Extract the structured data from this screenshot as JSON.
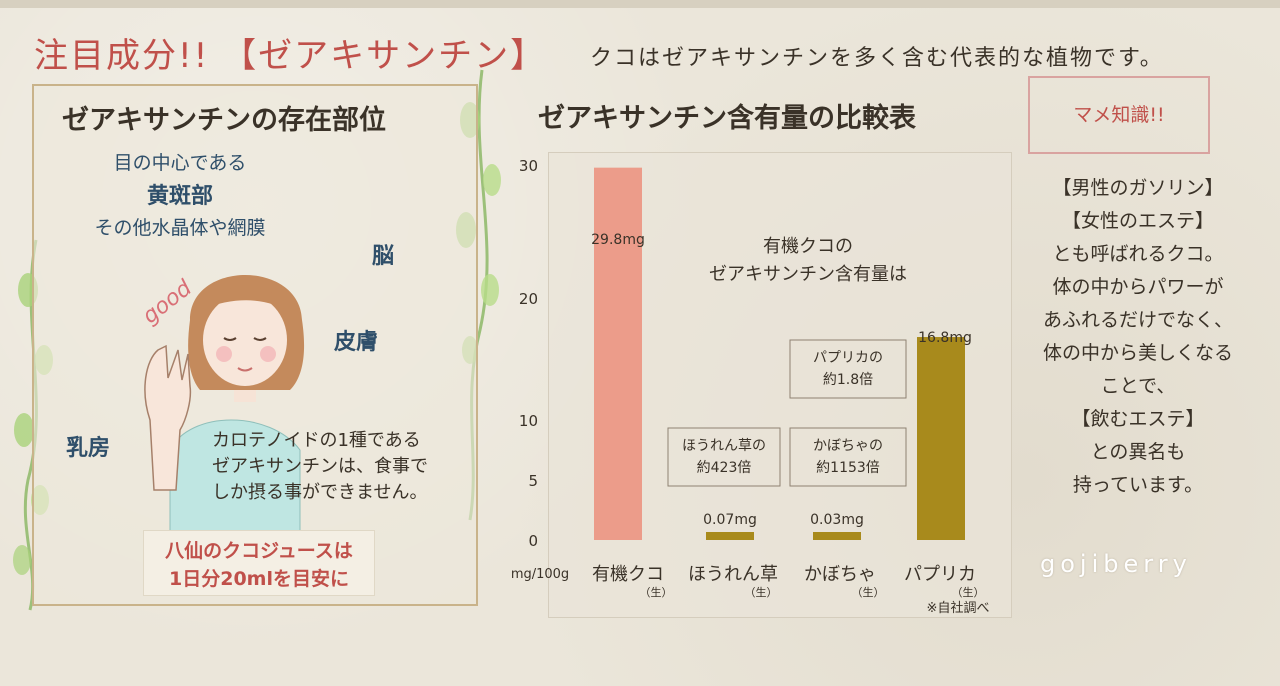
{
  "header": {
    "headline": "注目成分!! 【ゼアキサンチン】",
    "subhead": "クコはゼアキサンチンを多く含む代表的な植物です。"
  },
  "left": {
    "title": "ゼアキサンチンの存在部位",
    "part_line1": "目の中心である",
    "part_line2": "黄斑部",
    "part_line3": "その他水晶体や網膜",
    "label_brain": "脳",
    "label_skin": "皮膚",
    "label_breast": "乳房",
    "good_text": "good",
    "note_lines": [
      "カロテノイドの1種である",
      "ゼアキサンチンは、食事で",
      "しか摂る事ができません。"
    ],
    "callout_lines": [
      "八仙のクコジュースは",
      "1日分20mlを目安に"
    ]
  },
  "chart_data": {
    "type": "bar",
    "title": "ゼアキサンチン含有量の比較表",
    "unit_label": "mg/100g",
    "categories": [
      "有機クコ",
      "ほうれん草",
      "かぼちゃ",
      "パプリカ"
    ],
    "category_suffix": "（生）",
    "values": [
      29.8,
      0.07,
      0.03,
      16.8
    ],
    "value_labels": [
      "29.8mg",
      "0.07mg",
      "0.03mg",
      "16.8mg"
    ],
    "bar_colors": [
      "#ec9c8a",
      "#a88a1c",
      "#a88a1c",
      "#a88a1c"
    ],
    "ylim": [
      0,
      30
    ],
    "yticks": [
      0,
      5,
      10,
      20,
      30
    ],
    "annotation_main": [
      "有機クコの",
      "ゼアキサンチン含有量は"
    ],
    "compare_boxes": [
      {
        "lines": [
          "パプリカの",
          "約1.8倍"
        ]
      },
      {
        "lines": [
          "ほうれん草の",
          "約423倍"
        ]
      },
      {
        "lines": [
          "かぼちゃの",
          "約1153倍"
        ]
      }
    ],
    "footnote": "※自社調べ"
  },
  "right": {
    "mame_title": "マメ知識!!",
    "text_lines": [
      "【男性のガソリン】",
      "【女性のエステ】",
      "とも呼ばれるクコ。",
      "体の中からパワーが",
      "あふれるだけでなく、",
      "体の中から美しくなる",
      "ことで、",
      "【飲むエステ】",
      "との異名も",
      "持っています。"
    ],
    "brand": "gojiberry"
  },
  "colors": {
    "accent_red": "#c0504a",
    "goji_bar": "#ec9c8a",
    "other_bar": "#a88a1c",
    "label_blue": "#2f4f6a"
  }
}
